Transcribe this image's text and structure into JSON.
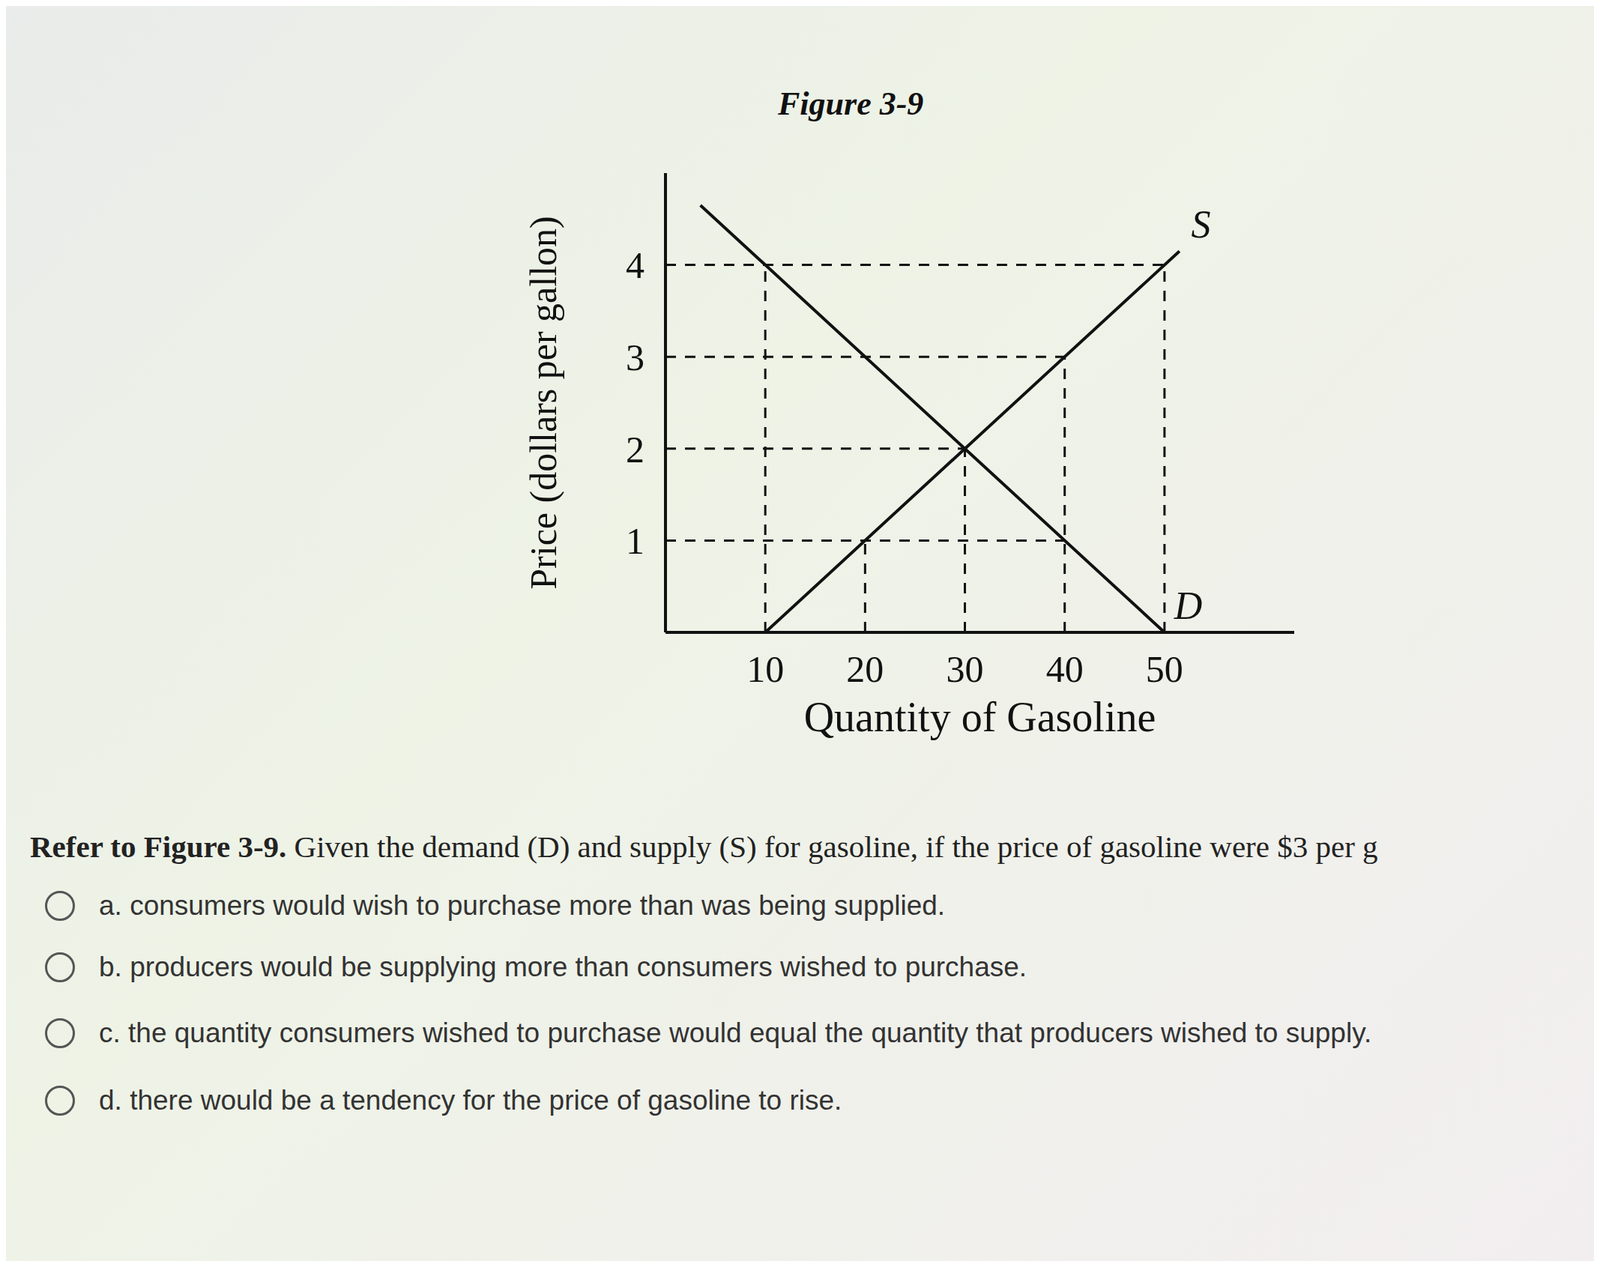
{
  "chart_data": {
    "type": "line",
    "title": "Figure 3-9",
    "x_label": "Quantity of Gasoline",
    "y_label": "Price (dollars per gallon)",
    "xlim": [
      0,
      63
    ],
    "ylim": [
      0,
      5
    ],
    "xticks": [
      10,
      20,
      30,
      40,
      50
    ],
    "yticks": [
      1,
      2,
      3,
      4
    ],
    "grid": false,
    "series": [
      {
        "name": "D",
        "color": "#111111",
        "x": [
          3.5,
          50
        ],
        "values": [
          4.65,
          0
        ]
      },
      {
        "name": "S",
        "color": "#111111",
        "x": [
          10,
          51.5
        ],
        "values": [
          0,
          4.15
        ]
      }
    ],
    "guides": [
      {
        "x": [
          0,
          50
        ],
        "y": [
          4,
          4
        ]
      },
      {
        "x": [
          0,
          40
        ],
        "y": [
          3,
          3
        ]
      },
      {
        "x": [
          0,
          30
        ],
        "y": [
          2,
          2
        ]
      },
      {
        "x": [
          0,
          40
        ],
        "y": [
          1,
          1
        ]
      },
      {
        "x": [
          10,
          10
        ],
        "y": [
          0,
          4
        ]
      },
      {
        "x": [
          20,
          20
        ],
        "y": [
          0,
          1
        ]
      },
      {
        "x": [
          30,
          30
        ],
        "y": [
          0,
          2
        ]
      },
      {
        "x": [
          40,
          40
        ],
        "y": [
          0,
          3
        ]
      },
      {
        "x": [
          50,
          50
        ],
        "y": [
          0,
          4
        ]
      }
    ],
    "annotations": [
      {
        "text": "S",
        "x": 52.3,
        "y": 4.45
      },
      {
        "text": "D",
        "x": 50.6,
        "y": 0.3
      }
    ]
  },
  "question": {
    "lead": "Refer to Figure 3-9.",
    "text": "Given the demand (D) and supply (S) for gasoline, if the price of gasoline were $3 per g",
    "options": [
      "a. consumers would wish to purchase more than was being supplied.",
      "b. producers would be supplying more than consumers wished to purchase.",
      "c. the quantity consumers wished to purchase would equal the quantity that producers wished to supply.",
      "d. there would be a tendency for the price of gasoline to rise."
    ]
  }
}
